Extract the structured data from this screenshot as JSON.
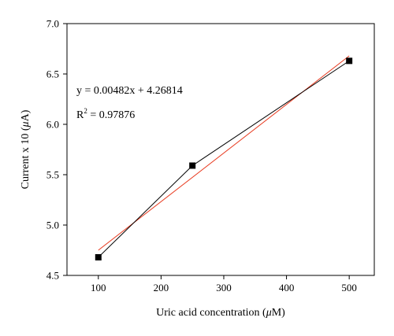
{
  "chart_data": {
    "type": "line",
    "title": "",
    "xlabel_main": "Uric acid concentration (",
    "xlabel_unit_mu": "μ",
    "xlabel_unit_rest": "M)",
    "ylabel_main": "Current x 10 (",
    "ylabel_unit_mu": "μ",
    "ylabel_unit_rest": "A)",
    "xlim": [
      50,
      540
    ],
    "ylim": [
      4.5,
      7.0
    ],
    "xticks": [
      100,
      200,
      300,
      400,
      500
    ],
    "xtick_labels": [
      "100",
      "200",
      "300",
      "400",
      "500"
    ],
    "yticks": [
      4.5,
      5.0,
      5.5,
      6.0,
      6.5,
      7.0
    ],
    "ytick_labels": [
      "4.5",
      "5.0",
      "5.5",
      "6.0",
      "6.5",
      "7.0"
    ],
    "series": [
      {
        "x": [
          100,
          250,
          500
        ],
        "y": [
          4.68,
          5.59,
          6.63
        ],
        "color": "#000000",
        "marker": "square"
      },
      {
        "x": [
          100,
          500
        ],
        "y": [
          4.75,
          6.68
        ],
        "color": "#e8391e",
        "marker": "none"
      }
    ],
    "annotations": {
      "equation": "y = 0.00482x + 4.26814",
      "r2_prefix": "R",
      "r2_sup": "2",
      "r2_suffix": " = 0.97876"
    }
  }
}
